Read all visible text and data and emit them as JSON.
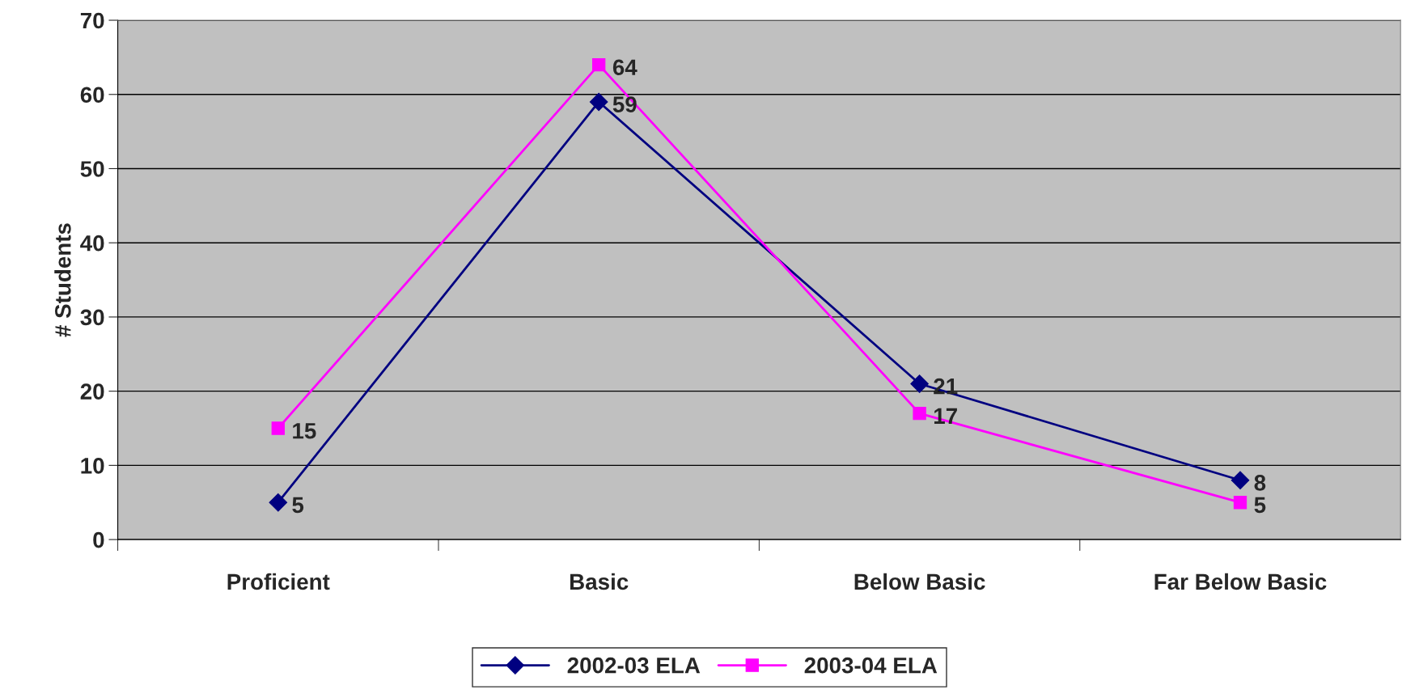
{
  "chart_data": {
    "type": "line",
    "ylabel": "# Students",
    "categories": [
      "Proficient",
      "Basic",
      "Below Basic",
      "Far Below Basic"
    ],
    "series": [
      {
        "name": "2002-03 ELA",
        "color": "#000080",
        "marker": "diamond",
        "values": [
          5,
          59,
          21,
          8
        ]
      },
      {
        "name": "2003-04 ELA",
        "color": "#ff00ff",
        "marker": "square",
        "values": [
          15,
          64,
          17,
          5
        ]
      }
    ],
    "ylim": [
      0,
      70
    ],
    "yticks": [
      0,
      10,
      20,
      30,
      40,
      50,
      60,
      70
    ],
    "grid": "y",
    "legend": "bottom",
    "data_labels": true
  }
}
